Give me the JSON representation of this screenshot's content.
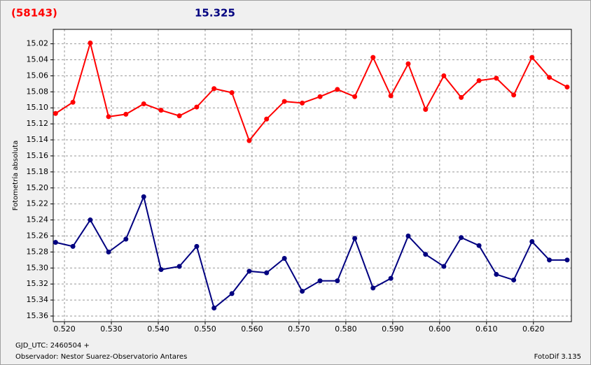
{
  "chart_data": {
    "type": "line",
    "header_left": "(58143)",
    "header_right": "15.325",
    "y_label": "Fotometría absoluta",
    "footer_left_1": "GJD_UTC: 2460504 +",
    "footer_left_2": "Observador: Nestor Suarez-Observatorio Antares",
    "footer_right": "FotoDif 3.135",
    "y_inverted": true,
    "grid": true,
    "xlim": [
      0.5176,
      0.6281
    ],
    "xticks": [
      {
        "value": 0.52,
        "label": "0.520"
      },
      {
        "value": 0.53,
        "label": "0.530"
      },
      {
        "value": 0.54,
        "label": "0.540"
      },
      {
        "value": 0.55,
        "label": "0.550"
      },
      {
        "value": 0.56,
        "label": "0.560"
      },
      {
        "value": 0.57,
        "label": "0.570"
      },
      {
        "value": 0.58,
        "label": "0.580"
      },
      {
        "value": 0.59,
        "label": "0.590"
      },
      {
        "value": 0.6,
        "label": "0.600"
      },
      {
        "value": 0.61,
        "label": "0.610"
      },
      {
        "value": 0.62,
        "label": "0.620"
      }
    ],
    "ylim": [
      15.002,
      15.367
    ],
    "yticks": [
      15.02,
      15.04,
      15.06,
      15.08,
      {
        "value": 15.1,
        "label": "15.10"
      },
      15.12,
      15.14,
      15.16,
      15.18,
      {
        "value": 15.2,
        "label": "15.20"
      },
      15.22,
      15.24,
      15.26,
      15.28,
      {
        "value": 15.3,
        "label": "15.30"
      },
      15.32,
      15.34,
      15.36
    ],
    "x": [
      0.5181,
      0.5218,
      0.5255,
      0.5294,
      0.5331,
      0.5369,
      0.5406,
      0.5445,
      0.5482,
      0.5519,
      0.5557,
      0.5594,
      0.5631,
      0.5669,
      0.5707,
      0.5745,
      0.5782,
      0.5819,
      0.5858,
      0.5896,
      0.5933,
      0.597,
      0.6009,
      0.6046,
      0.6084,
      0.6121,
      0.6158,
      0.6197,
      0.6234,
      0.6272
    ],
    "series": [
      {
        "color": "#ff0000",
        "values": [
          15.107,
          15.093,
          15.019,
          15.111,
          15.108,
          15.095,
          15.103,
          15.11,
          15.099,
          15.076,
          15.081,
          15.141,
          15.114,
          15.092,
          15.094,
          15.086,
          15.077,
          15.086,
          15.037,
          15.085,
          15.045,
          15.102,
          15.06,
          15.087,
          15.066,
          15.063,
          15.084,
          15.037,
          15.062,
          15.074
        ]
      },
      {
        "color": "#000080",
        "values": [
          15.268,
          15.273,
          15.24,
          15.28,
          15.264,
          15.211,
          15.302,
          15.298,
          15.273,
          15.35,
          15.332,
          15.304,
          15.306,
          15.288,
          15.329,
          15.316,
          15.316,
          15.263,
          15.325,
          15.313,
          15.26,
          15.283,
          15.298,
          15.262,
          15.272,
          15.308,
          15.315,
          15.267,
          15.29,
          15.29
        ]
      }
    ]
  }
}
